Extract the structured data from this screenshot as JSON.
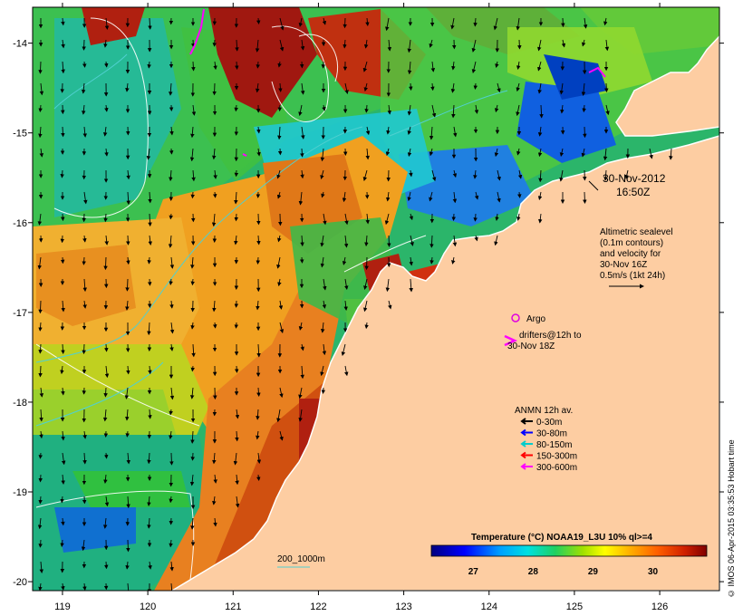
{
  "date": "30-Nov-2012",
  "time": "16:50Z",
  "altimetry": {
    "line1": "Altimetric sealevel",
    "line2": "(0.1m contours)",
    "line3": "and velocity for",
    "line4": "30-Nov 16Z",
    "line5": "0.5m/s (1kt 24h)"
  },
  "argo_label": "Argo",
  "drifters": {
    "line1": "drifters@12h to",
    "line2": "30-Nov 18Z"
  },
  "anmn": {
    "title": "ANMN 12h av.",
    "items": [
      {
        "label": "0-30m",
        "color": "#000000"
      },
      {
        "label": "30-80m",
        "color": "#0000ff"
      },
      {
        "label": "80-150m",
        "color": "#00cccc"
      },
      {
        "label": "150-300m",
        "color": "#ff0000"
      },
      {
        "label": "300-600m",
        "color": "#ff00ff"
      }
    ]
  },
  "bathymetry_label": "200_1000m",
  "colorbar": {
    "title": "Temperature (°C) NOAA19_L3U 10% ql>=4",
    "ticks": [
      "27",
      "28",
      "29",
      "30"
    ],
    "tick_values": [
      27,
      28,
      29,
      30
    ],
    "range": [
      26.3,
      30.9
    ]
  },
  "axes": {
    "lon_ticks": [
      "119",
      "120",
      "121",
      "122",
      "123",
      "124",
      "125",
      "126"
    ],
    "lon_values": [
      119,
      120,
      121,
      122,
      123,
      124,
      125,
      126
    ],
    "lat_ticks": [
      "-14",
      "-15",
      "-16",
      "-17",
      "-18",
      "-19",
      "-20"
    ],
    "lat_values": [
      -14,
      -15,
      -16,
      -17,
      -18,
      -19,
      -20
    ],
    "lon_range": [
      118.65,
      126.7
    ],
    "lat_range": [
      -20.1,
      -13.6
    ]
  },
  "watermark": "© IMOS 06-Apr-2015 03:35:53 Hobart time",
  "colors": {
    "land": "#fdcda2",
    "coast": "#ffffff",
    "argo": "#e000e0",
    "drifter": "#ff00ff"
  }
}
